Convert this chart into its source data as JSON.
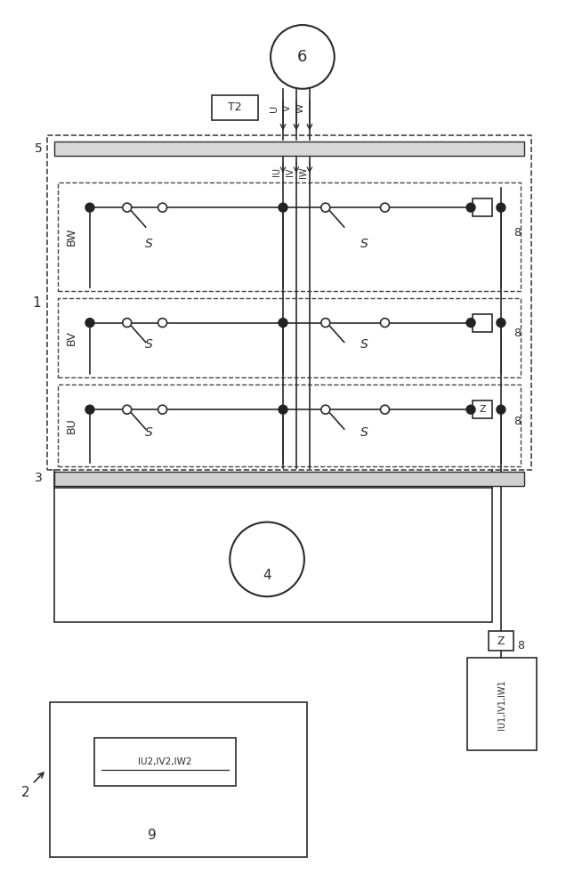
{
  "bg_color": "#ffffff",
  "line_color": "#2a2a2a",
  "dashed_color": "#444444",
  "filled_dot_color": "#222222",
  "open_dot_color": "#ffffff",
  "fig_width": 6.36,
  "fig_height": 10.0,
  "labels": {
    "l1": "1",
    "l2": "2",
    "l3": "3",
    "l4": "4",
    "l5": "5",
    "l6": "6",
    "l8": "8",
    "l9": "9",
    "lBW": "BW",
    "lBV": "BV",
    "lBU": "BU",
    "lIU": "IU",
    "lIV": "IV",
    "lIW": "IW",
    "lU": "U",
    "lV": "V",
    "lW": "W",
    "lS": "S",
    "lZ": "Z",
    "lT2": "T2",
    "lIU2IV2IW2": "IU2,IV2,IW2",
    "lIU1IV1IW1": "IU1,IV1,IW1"
  }
}
